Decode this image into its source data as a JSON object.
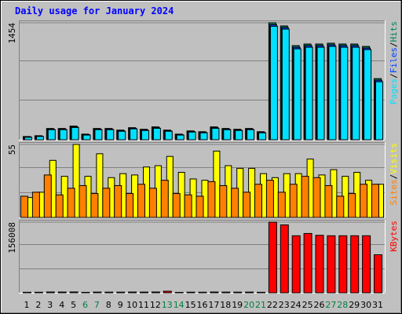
{
  "chart_data": [
    {
      "type": "bar",
      "title": "Daily usage for January 2024",
      "categories": [
        "1",
        "2",
        "3",
        "4",
        "5",
        "6",
        "7",
        "8",
        "9",
        "10",
        "11",
        "12",
        "13",
        "14",
        "15",
        "16",
        "17",
        "18",
        "19",
        "20",
        "21",
        "22",
        "23",
        "24",
        "25",
        "26",
        "27",
        "28",
        "29",
        "30",
        "31"
      ],
      "category_colors": [
        "#000000",
        "#000000",
        "#000000",
        "#000000",
        "#000000",
        "#008040",
        "#008040",
        "#000000",
        "#000000",
        "#000000",
        "#000000",
        "#000000",
        "#008040",
        "#008040",
        "#000000",
        "#000000",
        "#000000",
        "#000000",
        "#000000",
        "#008040",
        "#008040",
        "#000000",
        "#000000",
        "#000000",
        "#000000",
        "#000000",
        "#008040",
        "#008040",
        "#000000",
        "#000000",
        "#000000"
      ],
      "legend_separator": "/",
      "ylim": [
        0,
        1454
      ],
      "yticks": [
        1454
      ],
      "series": [
        {
          "name": "Pages",
          "color": "#00e0ff",
          "values": [
            30,
            40,
            125,
            125,
            152,
            58,
            125,
            125,
            105,
            135,
            115,
            142,
            105,
            58,
            95,
            86,
            142,
            125,
            115,
            125,
            86,
            1410,
            1375,
            1130,
            1150,
            1150,
            1160,
            1150,
            1150,
            1120,
            720
          ]
        },
        {
          "name": "Files",
          "color": "#0040ff",
          "values": [
            36,
            45,
            132,
            132,
            160,
            64,
            132,
            132,
            112,
            142,
            122,
            150,
            112,
            64,
            102,
            92,
            150,
            132,
            122,
            132,
            92,
            1430,
            1395,
            1150,
            1170,
            1170,
            1180,
            1170,
            1170,
            1140,
            740
          ]
        },
        {
          "name": "Hits",
          "color": "#00805c",
          "values": [
            40,
            50,
            140,
            140,
            170,
            70,
            140,
            140,
            120,
            150,
            130,
            160,
            120,
            70,
            110,
            100,
            160,
            140,
            130,
            140,
            100,
            1454,
            1415,
            1170,
            1190,
            1190,
            1200,
            1190,
            1190,
            1160,
            760
          ]
        }
      ]
    },
    {
      "type": "bar",
      "ylim": [
        0,
        55
      ],
      "yticks": [
        55
      ],
      "series": [
        {
          "name": "Sites",
          "color": "#ff8000",
          "values": [
            16,
            19,
            32,
            17,
            22,
            24,
            18,
            22,
            24,
            18,
            25,
            22,
            28,
            18,
            17,
            16,
            27,
            24,
            22,
            19,
            25,
            28,
            19,
            25,
            31,
            30,
            24,
            16,
            18,
            25,
            25
          ]
        },
        {
          "name": "Visits",
          "color": "#ffff00",
          "values": [
            15,
            19,
            43,
            31,
            55,
            31,
            48,
            30,
            33,
            32,
            38,
            39,
            46,
            34,
            29,
            28,
            50,
            39,
            37,
            37,
            33,
            30,
            33,
            33,
            44,
            32,
            36,
            31,
            34,
            28,
            25
          ]
        }
      ]
    },
    {
      "type": "bar",
      "ylim": [
        0,
        156008
      ],
      "yticks": [
        156008
      ],
      "series": [
        {
          "name": "KBytes",
          "color": "#ff0000",
          "values": [
            1200,
            1300,
            1800,
            1700,
            1900,
            1000,
            1600,
            1500,
            1500,
            1700,
            1600,
            1800,
            3500,
            1000,
            1400,
            1300,
            1800,
            1600,
            1500,
            1600,
            1200,
            156008,
            150000,
            126000,
            131000,
            127000,
            126000,
            126000,
            126000,
            126000,
            84000
          ]
        }
      ]
    }
  ]
}
